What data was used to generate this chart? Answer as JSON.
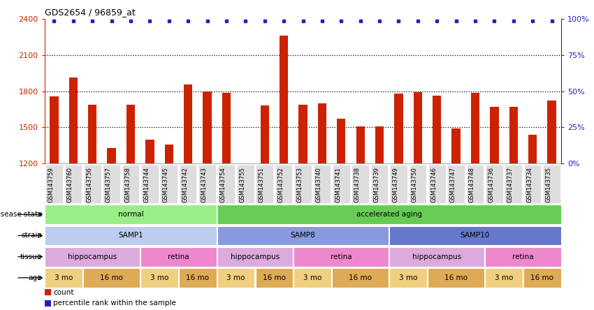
{
  "title": "GDS2654 / 96859_at",
  "samples": [
    "GSM143759",
    "GSM143760",
    "GSM143756",
    "GSM143757",
    "GSM143758",
    "GSM143744",
    "GSM143745",
    "GSM143742",
    "GSM143743",
    "GSM143754",
    "GSM143755",
    "GSM143751",
    "GSM143752",
    "GSM143753",
    "GSM143740",
    "GSM143741",
    "GSM143738",
    "GSM143739",
    "GSM143749",
    "GSM143750",
    "GSM143746",
    "GSM143747",
    "GSM143748",
    "GSM143736",
    "GSM143737",
    "GSM143734",
    "GSM143735"
  ],
  "counts": [
    1755,
    1910,
    1690,
    1330,
    1690,
    1400,
    1360,
    1855,
    1795,
    1785,
    1205,
    1680,
    2260,
    1690,
    1700,
    1570,
    1510,
    1510,
    1780,
    1790,
    1760,
    1490,
    1785,
    1670,
    1670,
    1440,
    1720
  ],
  "bar_color": "#cc2200",
  "dot_color": "#2222bb",
  "ylim_left": [
    1200,
    2400
  ],
  "ylim_right": [
    0,
    100
  ],
  "yticks_left": [
    1200,
    1500,
    1800,
    2100,
    2400
  ],
  "yticks_right": [
    0,
    25,
    50,
    75,
    100
  ],
  "grid_lines": [
    1500,
    1800,
    2100
  ],
  "annotation_rows": [
    {
      "label": "disease state",
      "segments": [
        {
          "text": "normal",
          "start": 0,
          "end": 9,
          "color": "#99ee88"
        },
        {
          "text": "accelerated aging",
          "start": 9,
          "end": 27,
          "color": "#66cc55"
        }
      ]
    },
    {
      "label": "strain",
      "segments": [
        {
          "text": "SAMP1",
          "start": 0,
          "end": 9,
          "color": "#bbccee"
        },
        {
          "text": "SAMP8",
          "start": 9,
          "end": 18,
          "color": "#8899dd"
        },
        {
          "text": "SAMP10",
          "start": 18,
          "end": 27,
          "color": "#6677cc"
        }
      ]
    },
    {
      "label": "tissue",
      "segments": [
        {
          "text": "hippocampus",
          "start": 0,
          "end": 5,
          "color": "#ddaadd"
        },
        {
          "text": "retina",
          "start": 5,
          "end": 9,
          "color": "#ee88cc"
        },
        {
          "text": "hippocampus",
          "start": 9,
          "end": 13,
          "color": "#ddaadd"
        },
        {
          "text": "retina",
          "start": 13,
          "end": 18,
          "color": "#ee88cc"
        },
        {
          "text": "hippocampus",
          "start": 18,
          "end": 23,
          "color": "#ddaadd"
        },
        {
          "text": "retina",
          "start": 23,
          "end": 27,
          "color": "#ee88cc"
        }
      ]
    },
    {
      "label": "age",
      "segments": [
        {
          "text": "3 mo",
          "start": 0,
          "end": 2,
          "color": "#f0d080"
        },
        {
          "text": "16 mo",
          "start": 2,
          "end": 5,
          "color": "#ddaa55"
        },
        {
          "text": "3 mo",
          "start": 5,
          "end": 7,
          "color": "#f0d080"
        },
        {
          "text": "16 mo",
          "start": 7,
          "end": 9,
          "color": "#ddaa55"
        },
        {
          "text": "3 mo",
          "start": 9,
          "end": 11,
          "color": "#f0d080"
        },
        {
          "text": "16 mo",
          "start": 11,
          "end": 13,
          "color": "#ddaa55"
        },
        {
          "text": "3 mo",
          "start": 13,
          "end": 15,
          "color": "#f0d080"
        },
        {
          "text": "16 mo",
          "start": 15,
          "end": 18,
          "color": "#ddaa55"
        },
        {
          "text": "3 mo",
          "start": 18,
          "end": 20,
          "color": "#f0d080"
        },
        {
          "text": "16 mo",
          "start": 20,
          "end": 23,
          "color": "#ddaa55"
        },
        {
          "text": "3 mo",
          "start": 23,
          "end": 25,
          "color": "#f0d080"
        },
        {
          "text": "16 mo",
          "start": 25,
          "end": 27,
          "color": "#ddaa55"
        }
      ]
    }
  ],
  "legend_items": [
    {
      "label": "count",
      "color": "#cc2200"
    },
    {
      "label": "percentile rank within the sample",
      "color": "#2222bb"
    }
  ],
  "fig_bg": "#ffffff",
  "chart_bg": "#ffffff",
  "tick_bg": "#dddddd"
}
